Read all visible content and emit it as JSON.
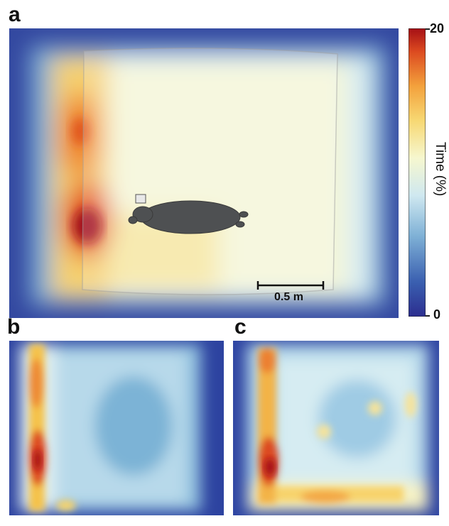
{
  "panels": {
    "a": "a",
    "b": "b",
    "c": "c"
  },
  "colorbar": {
    "label": "Time (%)",
    "max_label": "20",
    "min_label": "0",
    "colors": [
      "#2c2e8f",
      "#3a5fb0",
      "#7fb1d6",
      "#cfe8f0",
      "#f6f7cf",
      "#f7d873",
      "#f3a13c",
      "#dc4a20",
      "#a50f15"
    ]
  },
  "scale_bar": {
    "label": "0.5 m"
  },
  "colors": {
    "low": "#2f3b94",
    "mid_low": "#9cc6e2",
    "mid": "#eef3d8",
    "mid_high": "#f4c24a",
    "high": "#b0171c"
  }
}
